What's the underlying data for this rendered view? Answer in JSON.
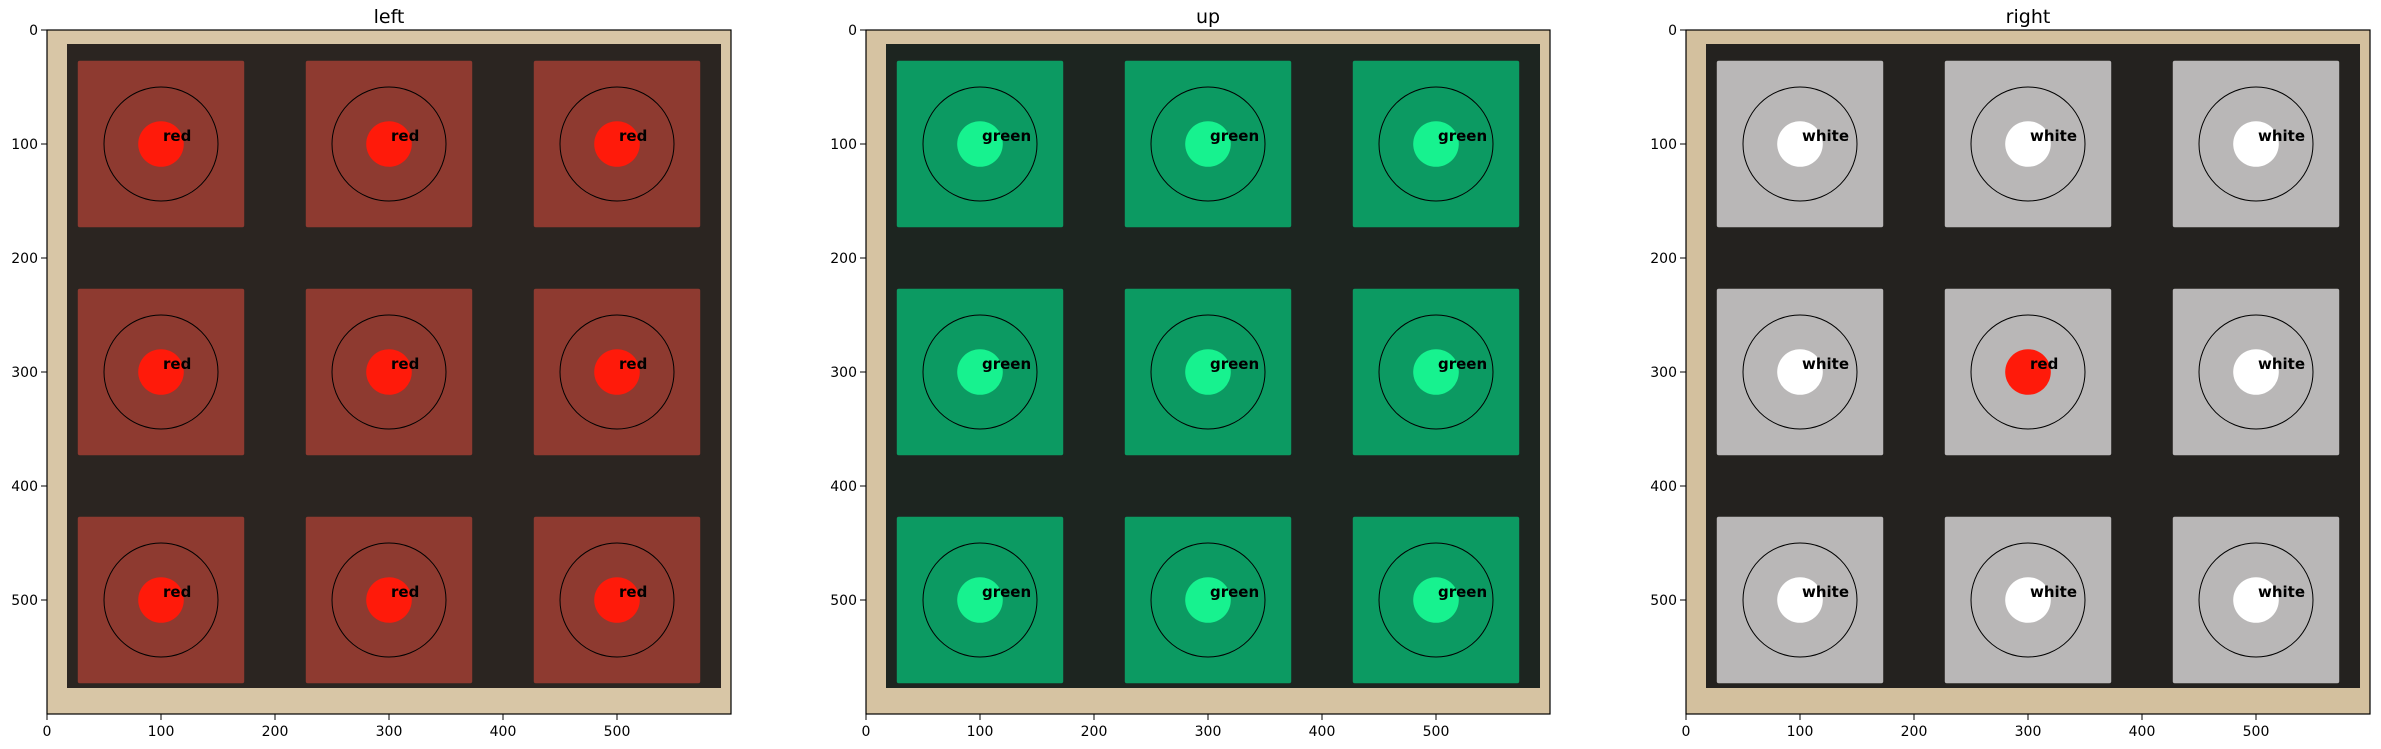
{
  "chart_data": [
    {
      "type": "heatmap",
      "title": "left",
      "x_ticks": [
        0,
        100,
        200,
        300,
        400,
        500
      ],
      "y_ticks": [
        0,
        100,
        200,
        300,
        400,
        500
      ],
      "xlim": [
        0,
        600
      ],
      "ylim": [
        600,
        0
      ],
      "tile_color": "#8e3a30",
      "samples": [
        {
          "x": 100,
          "y": 100,
          "label": "red",
          "color": "#ff1a0a"
        },
        {
          "x": 300,
          "y": 100,
          "label": "red",
          "color": "#ff1a0a"
        },
        {
          "x": 500,
          "y": 100,
          "label": "red",
          "color": "#ff1a0a"
        },
        {
          "x": 100,
          "y": 300,
          "label": "red",
          "color": "#ff1a0a"
        },
        {
          "x": 300,
          "y": 300,
          "label": "red",
          "color": "#ff1a0a"
        },
        {
          "x": 500,
          "y": 300,
          "label": "red",
          "color": "#ff1a0a"
        },
        {
          "x": 100,
          "y": 500,
          "label": "red",
          "color": "#ff1a0a"
        },
        {
          "x": 300,
          "y": 500,
          "label": "red",
          "color": "#ff1a0a"
        },
        {
          "x": 500,
          "y": 500,
          "label": "red",
          "color": "#ff1a0a"
        }
      ]
    },
    {
      "type": "heatmap",
      "title": "up",
      "x_ticks": [
        0,
        100,
        200,
        300,
        400,
        500
      ],
      "y_ticks": [
        0,
        100,
        200,
        300,
        400,
        500
      ],
      "xlim": [
        0,
        600
      ],
      "ylim": [
        600,
        0
      ],
      "tile_color": "#0c9a62",
      "samples": [
        {
          "x": 100,
          "y": 100,
          "label": "green",
          "color": "#17f28f"
        },
        {
          "x": 300,
          "y": 100,
          "label": "green",
          "color": "#17f28f"
        },
        {
          "x": 500,
          "y": 100,
          "label": "green",
          "color": "#17f28f"
        },
        {
          "x": 100,
          "y": 300,
          "label": "green",
          "color": "#17f28f"
        },
        {
          "x": 300,
          "y": 300,
          "label": "green",
          "color": "#17f28f"
        },
        {
          "x": 500,
          "y": 300,
          "label": "green",
          "color": "#17f28f"
        },
        {
          "x": 100,
          "y": 500,
          "label": "green",
          "color": "#17f28f"
        },
        {
          "x": 300,
          "y": 500,
          "label": "green",
          "color": "#17f28f"
        },
        {
          "x": 500,
          "y": 500,
          "label": "green",
          "color": "#17f28f"
        }
      ]
    },
    {
      "type": "heatmap",
      "title": "right",
      "x_ticks": [
        0,
        100,
        200,
        300,
        400,
        500
      ],
      "y_ticks": [
        0,
        100,
        200,
        300,
        400,
        500
      ],
      "xlim": [
        0,
        600
      ],
      "ylim": [
        600,
        0
      ],
      "tile_color": "#b9b7b7",
      "samples": [
        {
          "x": 100,
          "y": 100,
          "label": "white",
          "color": "#ffffff"
        },
        {
          "x": 300,
          "y": 100,
          "label": "white",
          "color": "#ffffff"
        },
        {
          "x": 500,
          "y": 100,
          "label": "white",
          "color": "#ffffff"
        },
        {
          "x": 100,
          "y": 300,
          "label": "white",
          "color": "#ffffff"
        },
        {
          "x": 300,
          "y": 300,
          "label": "red",
          "color": "#ff1a0a"
        },
        {
          "x": 500,
          "y": 300,
          "label": "white",
          "color": "#ffffff"
        },
        {
          "x": 100,
          "y": 500,
          "label": "white",
          "color": "#ffffff"
        },
        {
          "x": 300,
          "y": 500,
          "label": "white",
          "color": "#ffffff"
        },
        {
          "x": 500,
          "y": 500,
          "label": "white",
          "color": "#ffffff"
        }
      ]
    }
  ]
}
